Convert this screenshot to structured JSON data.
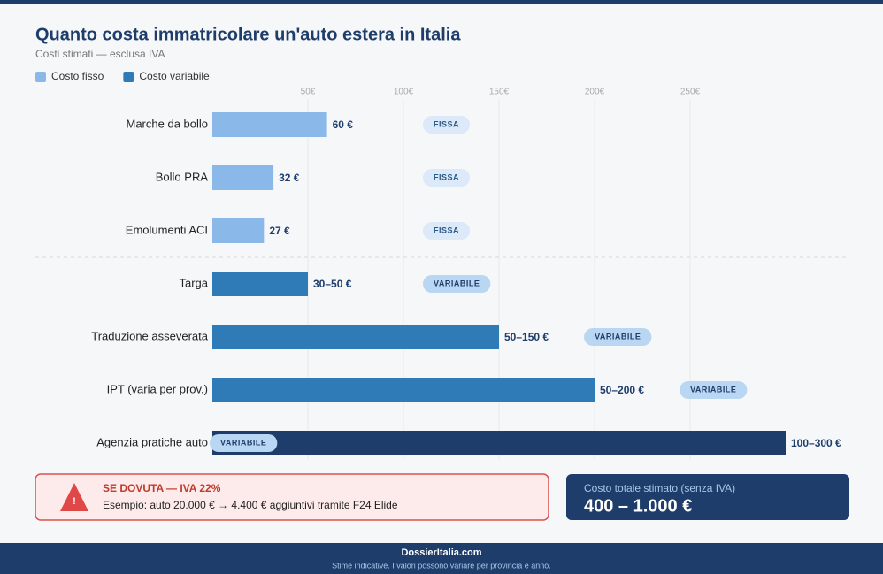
{
  "chart_data": {
    "type": "bar",
    "orientation": "horizontal",
    "title": "Quanto costa immatricolare un'auto estera in Italia",
    "subtitle": "Costi stimati — esclusa IVA",
    "legend": [
      {
        "name": "Costo fisso",
        "color": "#8ab8e8"
      },
      {
        "name": "Costo variabile",
        "color": "#2f7bb8"
      }
    ],
    "categories": [
      "Marche da bollo",
      "Bollo PRA",
      "Emolumenti ACI",
      "Targa",
      "Traduzione asseverata",
      "IPT (varia per prov.)",
      "Agenzia pratiche auto"
    ],
    "values": [
      60,
      32,
      27,
      50,
      150,
      200,
      300
    ],
    "value_labels": [
      "60 €",
      "32 €",
      "27 €",
      "30–50 €",
      "50–150 €",
      "50–200 €",
      "100–300 €"
    ],
    "colors": [
      "#8ab8e8",
      "#8ab8e8",
      "#8ab8e8",
      "#2f7bb8",
      "#2f7bb8",
      "#2f7bb8",
      "#1e3d6b"
    ],
    "tags": [
      "FISSA",
      "FISSA",
      "FISSA",
      "VARIABILE",
      "VARIABILE",
      "VARIABILE",
      "VARIABILE"
    ],
    "xlim": [
      0,
      300
    ],
    "xticks": [
      {
        "value": 50,
        "label": "50€"
      },
      {
        "value": 100,
        "label": "100€"
      },
      {
        "value": 150,
        "label": "150€"
      },
      {
        "value": 200,
        "label": "200€"
      },
      {
        "value": 250,
        "label": "250€"
      }
    ],
    "grid": true
  },
  "warning": {
    "title": "SE DOVUTA — IVA 22%",
    "text": "Esempio: auto 20.000 € → 4.400 € aggiuntivi tramite F24 Elide"
  },
  "total": {
    "label": "Costo totale stimato (senza IVA)",
    "value": "400 – 1.000 €"
  },
  "footer": {
    "site": "DossierItalia.com",
    "note": "Stime indicative. I valori possono variare per provincia e anno."
  }
}
